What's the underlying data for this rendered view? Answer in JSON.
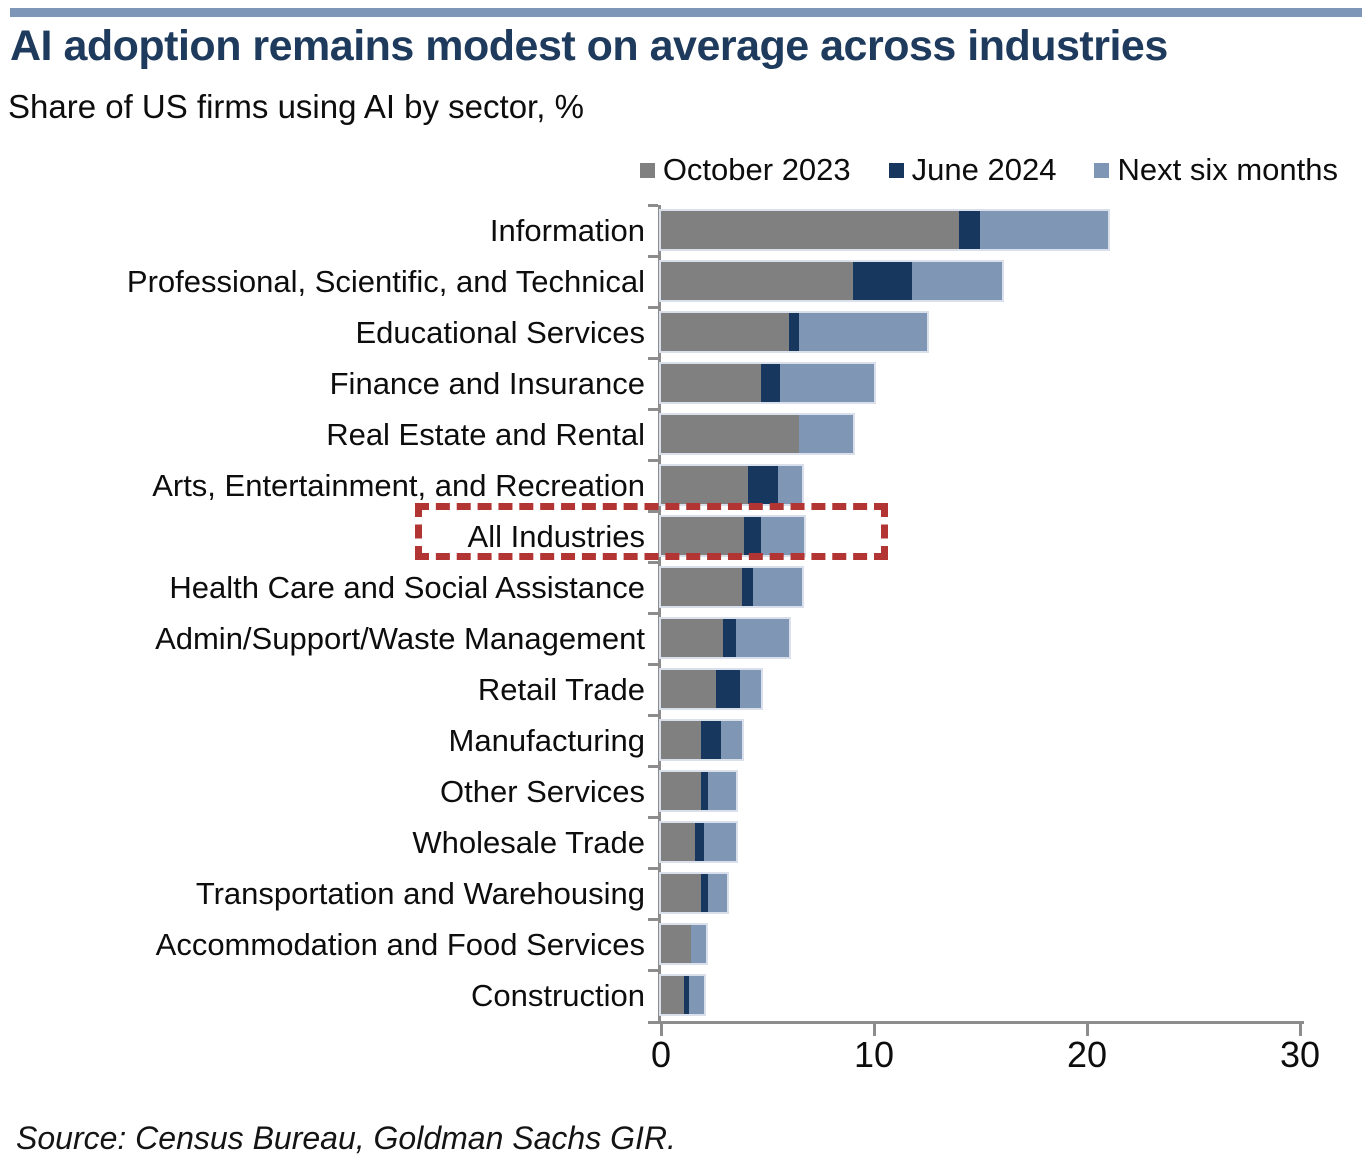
{
  "title": "AI adoption remains modest on average across industries",
  "subtitle": "Share of US firms using AI by sector, %",
  "source": "Source: Census Bureau, Goldman Sachs GIR.",
  "colors": {
    "top_rule": "#7E96B8",
    "title_text": "#1E3A5C",
    "axis": "#8C8C8C",
    "bar_outline": "#D9E0EC",
    "highlight_red": "#B23533"
  },
  "chart_data": {
    "type": "bar",
    "orientation": "horizontal",
    "stacked": true,
    "title": "AI adoption remains modest on average across industries",
    "subtitle": "Share of US firms using AI by sector, %",
    "xlabel": "",
    "ylabel": "",
    "xlim": [
      0,
      30
    ],
    "xticks": [
      0,
      10,
      20,
      30
    ],
    "grid": false,
    "legend_position": "top-right",
    "highlighted_category": "All Industries",
    "categories": [
      "Information",
      "Professional, Scientific, and Technical",
      "Educational Services",
      "Finance and Insurance",
      "Real Estate and Rental",
      "Arts, Entertainment, and Recreation",
      "All Industries",
      "Health Care and Social Assistance",
      "Admin/Support/Waste Management",
      "Retail Trade",
      "Manufacturing",
      "Other Services",
      "Wholesale Trade",
      "Transportation and Warehousing",
      "Accommodation and Food Services",
      "Construction"
    ],
    "series": [
      {
        "name": "October 2023",
        "color": "#808080",
        "values": [
          14.0,
          9.0,
          6.0,
          4.7,
          6.5,
          4.1,
          3.9,
          3.8,
          2.9,
          2.6,
          1.9,
          1.9,
          1.6,
          1.9,
          1.4,
          1.1
        ]
      },
      {
        "name": "June 2024",
        "color": "#17375E",
        "values": [
          1.0,
          2.8,
          0.5,
          0.9,
          0.0,
          1.4,
          0.8,
          0.5,
          0.6,
          1.1,
          0.9,
          0.3,
          0.4,
          0.3,
          0.0,
          0.2
        ]
      },
      {
        "name": "Next six months",
        "color": "#7F96B5",
        "values": [
          6.0,
          4.2,
          6.0,
          4.4,
          2.5,
          1.1,
          2.0,
          2.3,
          2.5,
          1.0,
          1.0,
          1.3,
          1.5,
          0.9,
          0.7,
          0.7
        ]
      }
    ],
    "stacked_totals": [
      21.0,
      16.0,
      12.5,
      10.0,
      9.0,
      6.6,
      6.7,
      6.6,
      6.0,
      4.7,
      3.8,
      3.5,
      3.5,
      3.1,
      2.1,
      2.0
    ]
  }
}
